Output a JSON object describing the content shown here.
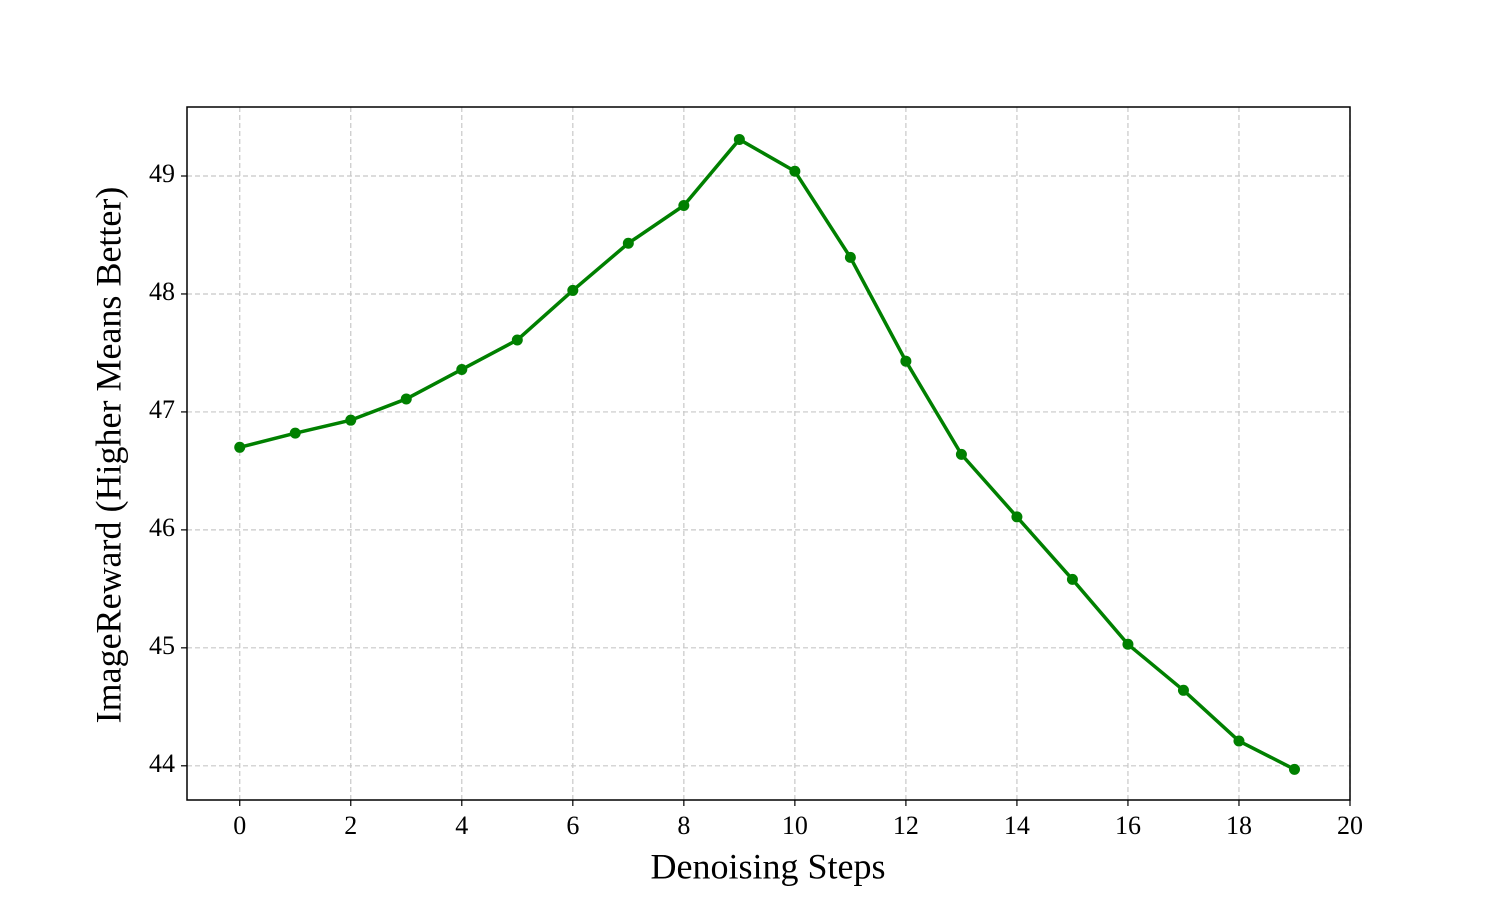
{
  "chart_data": {
    "type": "line",
    "x_label": "Denoising Steps",
    "y_label": "ImageReward (Higher Means Better)",
    "x": [
      0,
      1,
      2,
      3,
      4,
      5,
      6,
      7,
      8,
      9,
      10,
      11,
      12,
      13,
      14,
      15,
      16,
      17,
      18,
      19
    ],
    "series": [
      {
        "color": "#008000",
        "values": [
          46.7,
          46.82,
          46.93,
          47.11,
          47.36,
          47.61,
          48.03,
          48.43,
          48.75,
          49.31,
          49.04,
          48.31,
          47.43,
          46.64,
          46.11,
          45.58,
          45.03,
          44.64,
          44.21,
          43.97
        ]
      }
    ],
    "xlim": [
      -0.95,
      20
    ],
    "xticks": [
      0,
      2,
      4,
      6,
      8,
      10,
      12,
      14,
      16,
      18,
      20
    ],
    "ylim": [
      43.71,
      49.585
    ],
    "yticks": [
      44,
      45,
      46,
      47,
      48,
      49
    ],
    "grid": true
  }
}
